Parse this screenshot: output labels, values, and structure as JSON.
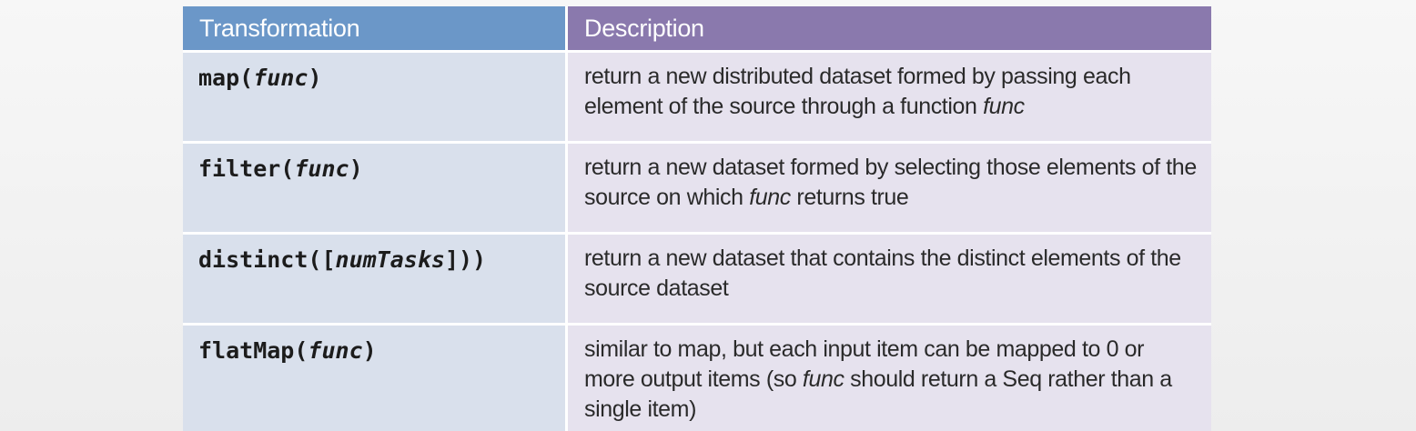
{
  "table": {
    "headers": {
      "transformation": "Transformation",
      "description": "Description"
    },
    "rows": [
      {
        "fn_name": "map(",
        "fn_arg": "func",
        "fn_close": ")",
        "desc_before": "return a new distributed dataset formed by passing each element of the source through a function ",
        "desc_em": "func",
        "desc_after": ""
      },
      {
        "fn_name": "filter(",
        "fn_arg": "func",
        "fn_close": ")",
        "desc_before": "return a new dataset formed by selecting those elements of the source on which ",
        "desc_em": "func",
        "desc_after": " returns true"
      },
      {
        "fn_name": "distinct([",
        "fn_arg": "numTasks",
        "fn_close": "]))",
        "desc_before": "return a new dataset that contains the distinct elements of the source dataset",
        "desc_em": "",
        "desc_after": ""
      },
      {
        "fn_name": "flatMap(",
        "fn_arg": "func",
        "fn_close": ")",
        "desc_before": "similar to map, but each input item can be mapped to 0 or more output items (so ",
        "desc_em": "func",
        "desc_after": " should return a Seq rather than a single item)"
      }
    ]
  },
  "colors": {
    "header_left": "#6b97c8",
    "header_right": "#8a79ad",
    "cell_left": "#d9e0ec",
    "cell_right": "#e6e2ee"
  }
}
